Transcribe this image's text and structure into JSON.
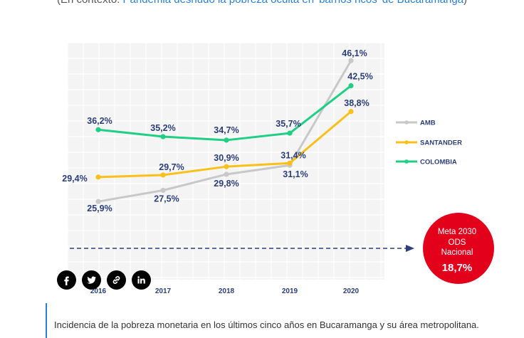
{
  "context": {
    "prefix": "(En contexto: ",
    "link_text": "Pandemia desnudó la pobreza oculta en 'barrios ricos' de Bucaramanga",
    "suffix": ")"
  },
  "chart_data": {
    "type": "line",
    "title": "",
    "xlabel": "",
    "ylabel": "",
    "categories": [
      "2016",
      "2017",
      "2018",
      "2019",
      "2020"
    ],
    "ylim": [
      15,
      50
    ],
    "grid": true,
    "legend_position": "right",
    "series": [
      {
        "name": "AMB",
        "color": "#c8c8c8",
        "values": [
          25.9,
          27.5,
          29.8,
          31.1,
          46.1
        ],
        "labels": [
          "25,9%",
          "27,5%",
          "29,8%",
          "31,1%",
          "46,1%"
        ]
      },
      {
        "name": "SANTANDER",
        "color": "#fbbf1a",
        "values": [
          29.4,
          29.7,
          30.9,
          31.4,
          38.8
        ],
        "labels": [
          "29,4%",
          "29,7%",
          "30,9%",
          "31,4%",
          "38,8%"
        ]
      },
      {
        "name": "COLOMBIA",
        "color": "#1fcf83",
        "values": [
          36.2,
          35.2,
          34.7,
          35.7,
          42.5
        ],
        "labels": [
          "36,2%",
          "35,2%",
          "34,7%",
          "35,7%",
          "42,5%"
        ]
      }
    ],
    "target": {
      "value": 18.7,
      "line_color": "#2b3f7a",
      "badge_color": "#e3001b",
      "badge_lines": [
        "Meta 2030",
        "ODS",
        "Nacional"
      ],
      "badge_value": "18,7%"
    },
    "label_color": "#2b3f7a"
  },
  "share": {
    "items": [
      {
        "name": "facebook",
        "icon": "facebook-icon"
      },
      {
        "name": "twitter",
        "icon": "twitter-icon"
      },
      {
        "name": "copy-link",
        "icon": "link-icon"
      },
      {
        "name": "linkedin",
        "icon": "linkedin-icon"
      }
    ]
  },
  "caption": {
    "text": "Incidencia de la pobreza monetaria en los últimos cinco años en Bucaramanga y su área metropolitana."
  }
}
